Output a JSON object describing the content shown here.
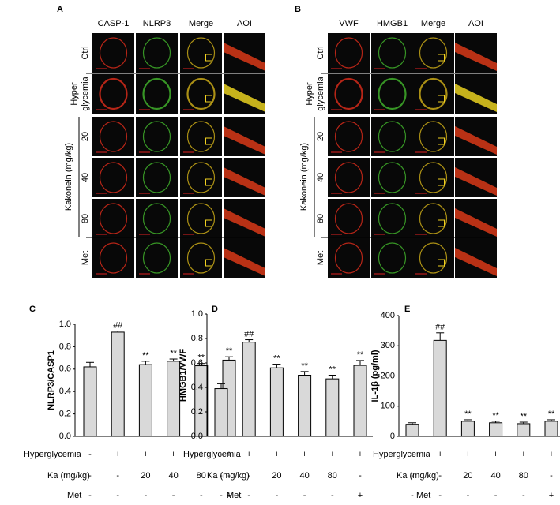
{
  "panels": [
    {
      "label": "A",
      "columns": [
        {
          "name": "CASP-1",
          "color": "#e8201c"
        },
        {
          "name": "NLRP3",
          "color": "#5cc030"
        },
        {
          "name": "Merge",
          "color": "#000000"
        },
        {
          "name": "AOI",
          "color": "#000000"
        }
      ],
      "rows": [
        "Ctrl",
        [
          "Hyper",
          "glycemia"
        ],
        "20",
        "40",
        "80",
        "Met"
      ],
      "group_label": "Kakonein (mg/kg)"
    },
    {
      "label": "B",
      "columns": [
        {
          "name": "VWF",
          "color": "#e8201c"
        },
        {
          "name": "HMGB1",
          "color": "#5cc030"
        },
        {
          "name": "Merge",
          "color": "#000000"
        },
        {
          "name": "AOI",
          "color": "#000000"
        }
      ],
      "rows": [
        "Ctrl",
        [
          "Hyper",
          "glycemia"
        ],
        "20",
        "40",
        "80",
        "Met"
      ],
      "group_label": "Kakonein (mg/kg)"
    }
  ],
  "chart_data": [
    {
      "type": "bar",
      "label": "C",
      "ylabel": "NLRP3/CASP1",
      "color": "#d9d9d9",
      "values": [
        0.62,
        0.93,
        0.64,
        0.67,
        0.63,
        0.68
      ],
      "errors": [
        0.04,
        0.01,
        0.03,
        0.02,
        0.02,
        0.03
      ],
      "annotations": [
        null,
        "##",
        "**",
        "**",
        "**",
        "**"
      ],
      "ylim": [
        0,
        1.0
      ],
      "yticks": [
        {
          "value": 0,
          "label": "0.0"
        },
        0.2,
        0.4,
        0.6,
        0.8,
        {
          "value": 1,
          "label": "1.0"
        }
      ],
      "conditions": [
        {
          "name": "Hyperglycemia",
          "values": [
            "-",
            "+",
            "+",
            "+",
            "+",
            "+"
          ]
        },
        {
          "name": "Ka (mg/kg)",
          "values": [
            "-",
            "-",
            "20",
            "40",
            "80",
            "-"
          ]
        },
        {
          "name": "Met",
          "values": [
            "-",
            "-",
            "-",
            "-",
            "-",
            "+"
          ]
        }
      ]
    },
    {
      "type": "bar",
      "label": "D",
      "ylabel": "HMGB1/VWF",
      "color": "#d9d9d9",
      "values": [
        0.39,
        0.77,
        0.56,
        0.5,
        0.47,
        0.58
      ],
      "errors": [
        0.04,
        0.02,
        0.03,
        0.03,
        0.03,
        0.04
      ],
      "annotations": [
        null,
        "##",
        "**",
        "**",
        "**",
        "**"
      ],
      "ylim": [
        0,
        1.0
      ],
      "yticks": [
        {
          "value": 0,
          "label": "0.0"
        },
        0.2,
        0.4,
        0.6,
        0.8,
        {
          "value": 1,
          "label": "1.0"
        }
      ],
      "conditions": [
        {
          "name": "Hyperglycemia",
          "values": [
            "-",
            "+",
            "+",
            "+",
            "+",
            "+"
          ]
        },
        {
          "name": "Ka (mg/kg)",
          "values": [
            "-",
            "-",
            "20",
            "40",
            "80",
            "-"
          ]
        },
        {
          "name": "Met",
          "values": [
            "-",
            "-",
            "-",
            "-",
            "-",
            "+"
          ]
        }
      ]
    },
    {
      "type": "bar",
      "label": "E",
      "ylabel": "IL-1β (pg/ml)",
      "color": "#d9d9d9",
      "values": [
        40,
        318,
        50,
        45,
        42,
        50
      ],
      "errors": [
        5,
        25,
        5,
        5,
        5,
        5
      ],
      "annotations": [
        null,
        "##",
        "**",
        "**",
        "**",
        "**"
      ],
      "ylim": [
        0,
        400
      ],
      "yticks": [
        0,
        100,
        200,
        300,
        400
      ],
      "conditions": [
        {
          "name": "Hyperglycemia",
          "values": [
            "-",
            "+",
            "+",
            "+",
            "+",
            "+"
          ]
        },
        {
          "name": "Ka (mg/kg)",
          "values": [
            "-",
            "-",
            "20",
            "40",
            "80",
            "-"
          ]
        },
        {
          "name": "Met",
          "values": [
            "-",
            "-",
            "-",
            "-",
            "-",
            "+"
          ]
        }
      ]
    }
  ]
}
